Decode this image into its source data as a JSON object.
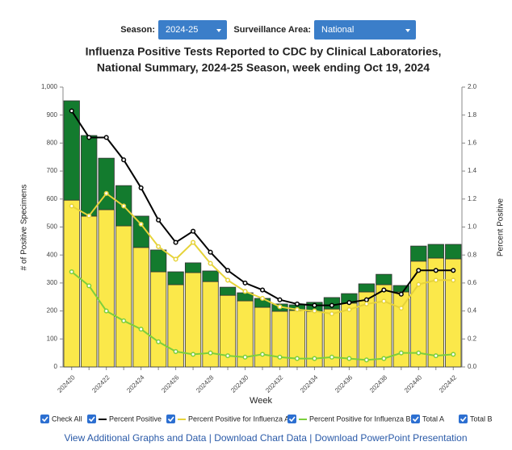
{
  "controls": {
    "season_label": "Season:",
    "season_value": "2024-25",
    "area_label": "Surveillance Area:",
    "area_value": "National"
  },
  "chart_data": {
    "type": "bar",
    "stacked": true,
    "title": [
      "Influenza Positive Tests Reported to CDC by Clinical Laboratories,",
      "National Summary, 2024-25 Season, week ending Oct 19, 2024"
    ],
    "x_label": "Week",
    "y_label": "# of Positive Specimens",
    "y2_label": "Percent Positive",
    "categories": [
      "202420",
      null,
      "202422",
      null,
      "202424",
      null,
      "202426",
      null,
      "202428",
      null,
      "202430",
      null,
      "202432",
      null,
      "202434",
      null,
      "202436",
      null,
      "202438",
      null,
      "202440",
      null,
      "202442"
    ],
    "ylim": [
      0,
      1000
    ],
    "yticks": [
      0,
      100,
      200,
      300,
      400,
      500,
      600,
      700,
      800,
      900,
      {
        "value": 1000,
        "label": "1,000"
      }
    ],
    "y2lim": [
      0,
      2
    ],
    "y2ticks": [
      {
        "value": 0,
        "label": "0.0"
      },
      {
        "value": 0.2,
        "label": "0.2"
      },
      {
        "value": 0.4,
        "label": "0.4"
      },
      {
        "value": 0.6,
        "label": "0.6"
      },
      {
        "value": 0.8,
        "label": "0.8"
      },
      {
        "value": 1,
        "label": "1.0"
      },
      {
        "value": 1.2,
        "label": "1.2"
      },
      {
        "value": 1.4,
        "label": "1.4"
      },
      {
        "value": 1.6,
        "label": "1.6"
      },
      {
        "value": 1.8,
        "label": "1.8"
      },
      {
        "value": 2,
        "label": "2.0"
      }
    ],
    "series": [
      {
        "name": "Percent Positive",
        "type": "line",
        "axis": "y2",
        "color": "#000000",
        "values": [
          1.83,
          1.64,
          1.64,
          1.48,
          1.28,
          1.05,
          0.89,
          0.97,
          0.82,
          0.69,
          0.6,
          0.55,
          0.48,
          0.45,
          0.44,
          0.44,
          0.46,
          0.48,
          0.55,
          0.52,
          0.69,
          0.69,
          0.69
        ]
      },
      {
        "name": "Percent Positive for Influenza A",
        "type": "line",
        "axis": "y2",
        "color": "#e6d33a",
        "values": [
          1.15,
          1.08,
          1.24,
          1.15,
          1.02,
          0.86,
          0.77,
          0.89,
          0.74,
          0.62,
          0.54,
          0.49,
          0.43,
          0.41,
          0.4,
          0.38,
          0.41,
          0.45,
          0.47,
          0.42,
          0.59,
          0.62,
          0.62
        ]
      },
      {
        "name": "Percent Positive for Influenza B",
        "type": "line",
        "axis": "y2",
        "color": "#7ccf3c",
        "values": [
          0.68,
          0.58,
          0.4,
          0.33,
          0.27,
          0.18,
          0.11,
          0.09,
          0.1,
          0.08,
          0.07,
          0.09,
          0.07,
          0.06,
          0.06,
          0.07,
          0.06,
          0.05,
          0.06,
          0.1,
          0.1,
          0.08,
          0.09
        ]
      },
      {
        "name": "Total A",
        "type": "bar",
        "color": "#fbe84a",
        "values": [
          596,
          539,
          562,
          504,
          427,
          340,
          294,
          337,
          305,
          256,
          236,
          213,
          199,
          202,
          199,
          207,
          228,
          268,
          294,
          268,
          378,
          389,
          386
        ]
      },
      {
        "name": "Total B",
        "type": "bar",
        "color": "#137b2e",
        "values": [
          355,
          288,
          184,
          144,
          112,
          78,
          46,
          35,
          38,
          29,
          29,
          32,
          26,
          20,
          32,
          41,
          34,
          29,
          37,
          23,
          54,
          49,
          52
        ]
      }
    ],
    "check_all": "Check All"
  },
  "links": [
    "View Additional Graphs and Data",
    "Download Chart Data",
    "Download PowerPoint Presentation"
  ],
  "link_separator": "|"
}
